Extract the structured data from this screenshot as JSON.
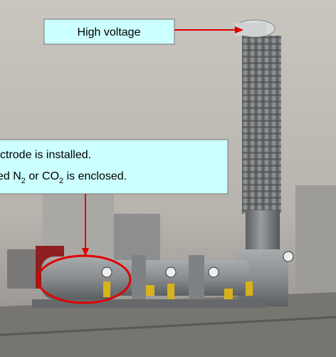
{
  "annotations": {
    "high_voltage": "High voltage",
    "note_line1": "ctrode is installed.",
    "note_line2": [
      "ed N",
      "2",
      " or CO",
      "2",
      " is enclosed."
    ]
  }
}
